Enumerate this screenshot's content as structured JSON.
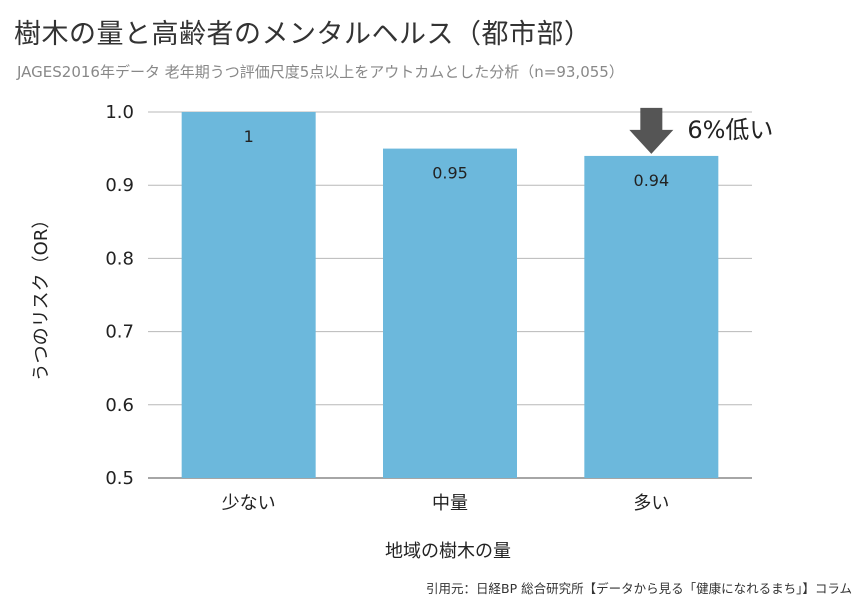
{
  "chart_data": {
    "type": "bar",
    "title": "樹木の量と高齢者のメンタルヘルス（都市部）",
    "subtitle": "JAGES2016年データ 老年期うつ評価尺度5点以上をアウトカムとした分析（n=93,055）",
    "xlabel": "地域の樹木の量",
    "ylabel": "うつのリスク（OR）",
    "categories": [
      "少ない",
      "中量",
      "多い"
    ],
    "values": [
      1,
      0.95,
      0.94
    ],
    "value_labels": [
      "1",
      "0.95",
      "0.94"
    ],
    "ylim": [
      0.5,
      1.0
    ],
    "yticks": [
      "0.5",
      "0.6",
      "0.7",
      "0.8",
      "0.9",
      "1.0"
    ],
    "grid": true,
    "bar_color": "#6cb8dc",
    "annotation": {
      "text": "6%低い",
      "category_index": 2,
      "arrow_color": "#555555"
    }
  },
  "source": "引用元：日経BP 総合研究所【データから見る「健康になれるまち」】コラム"
}
